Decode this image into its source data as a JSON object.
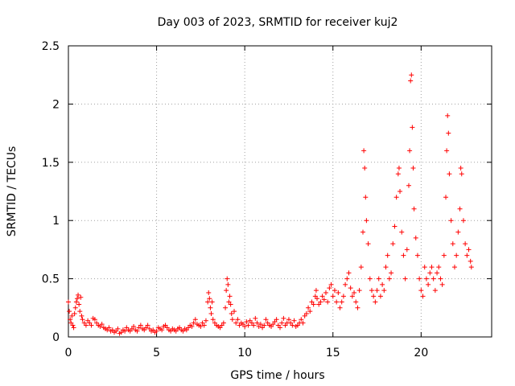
{
  "chart_data": {
    "type": "scatter",
    "title": "Day 003 of 2023, SRMTID for receiver kuj2",
    "xlabel": "GPS time / hours",
    "ylabel": "SRMTID / TECUs",
    "xlim": [
      0,
      24
    ],
    "ylim": [
      0,
      2.5
    ],
    "xticks": [
      0,
      5,
      10,
      15,
      20
    ],
    "xtick_labels": [
      "0",
      "5",
      "10",
      "15",
      "20"
    ],
    "yticks": [
      0,
      0.5,
      1,
      1.5,
      2,
      2.5
    ],
    "ytick_labels": [
      "0",
      "0.5",
      "1",
      "1.5",
      "2",
      "2.5"
    ],
    "grid": true,
    "marker": "+",
    "color": "#ff0000",
    "series": [
      {
        "name": "kuj2",
        "points": [
          [
            0.0,
            0.3
          ],
          [
            0.05,
            0.22
          ],
          [
            0.1,
            0.15
          ],
          [
            0.15,
            0.12
          ],
          [
            0.2,
            0.18
          ],
          [
            0.25,
            0.1
          ],
          [
            0.3,
            0.08
          ],
          [
            0.35,
            0.2
          ],
          [
            0.4,
            0.25
          ],
          [
            0.45,
            0.3
          ],
          [
            0.5,
            0.33
          ],
          [
            0.55,
            0.36
          ],
          [
            0.6,
            0.28
          ],
          [
            0.65,
            0.22
          ],
          [
            0.7,
            0.34
          ],
          [
            0.75,
            0.18
          ],
          [
            0.8,
            0.15
          ],
          [
            0.9,
            0.12
          ],
          [
            1.0,
            0.1
          ],
          [
            1.1,
            0.14
          ],
          [
            1.2,
            0.12
          ],
          [
            1.3,
            0.1
          ],
          [
            1.4,
            0.16
          ],
          [
            1.5,
            0.15
          ],
          [
            1.6,
            0.12
          ],
          [
            1.7,
            0.1
          ],
          [
            1.8,
            0.09
          ],
          [
            1.9,
            0.11
          ],
          [
            2.0,
            0.08
          ],
          [
            2.1,
            0.07
          ],
          [
            2.2,
            0.06
          ],
          [
            2.3,
            0.08
          ],
          [
            2.4,
            0.05
          ],
          [
            2.5,
            0.06
          ],
          [
            2.6,
            0.04
          ],
          [
            2.7,
            0.05
          ],
          [
            2.8,
            0.07
          ],
          [
            2.9,
            0.03
          ],
          [
            3.0,
            0.04
          ],
          [
            3.1,
            0.06
          ],
          [
            3.2,
            0.05
          ],
          [
            3.3,
            0.08
          ],
          [
            3.4,
            0.06
          ],
          [
            3.5,
            0.05
          ],
          [
            3.6,
            0.07
          ],
          [
            3.7,
            0.09
          ],
          [
            3.8,
            0.06
          ],
          [
            3.9,
            0.05
          ],
          [
            4.0,
            0.08
          ],
          [
            4.1,
            0.1
          ],
          [
            4.2,
            0.07
          ],
          [
            4.3,
            0.06
          ],
          [
            4.4,
            0.08
          ],
          [
            4.5,
            0.1
          ],
          [
            4.6,
            0.07
          ],
          [
            4.7,
            0.05
          ],
          [
            4.8,
            0.06
          ],
          [
            4.9,
            0.04
          ],
          [
            5.0,
            0.05
          ],
          [
            5.1,
            0.08
          ],
          [
            5.2,
            0.07
          ],
          [
            5.3,
            0.06
          ],
          [
            5.4,
            0.09
          ],
          [
            5.5,
            0.1
          ],
          [
            5.6,
            0.08
          ],
          [
            5.7,
            0.06
          ],
          [
            5.8,
            0.05
          ],
          [
            5.9,
            0.07
          ],
          [
            6.0,
            0.06
          ],
          [
            6.1,
            0.05
          ],
          [
            6.2,
            0.07
          ],
          [
            6.3,
            0.08
          ],
          [
            6.4,
            0.06
          ],
          [
            6.5,
            0.05
          ],
          [
            6.6,
            0.07
          ],
          [
            6.7,
            0.06
          ],
          [
            6.8,
            0.08
          ],
          [
            6.9,
            0.1
          ],
          [
            7.0,
            0.09
          ],
          [
            7.1,
            0.12
          ],
          [
            7.2,
            0.15
          ],
          [
            7.3,
            0.11
          ],
          [
            7.4,
            0.1
          ],
          [
            7.5,
            0.09
          ],
          [
            7.6,
            0.12
          ],
          [
            7.7,
            0.1
          ],
          [
            7.8,
            0.14
          ],
          [
            7.9,
            0.3
          ],
          [
            7.95,
            0.38
          ],
          [
            8.0,
            0.33
          ],
          [
            8.05,
            0.25
          ],
          [
            8.1,
            0.2
          ],
          [
            8.15,
            0.3
          ],
          [
            8.2,
            0.15
          ],
          [
            8.3,
            0.12
          ],
          [
            8.4,
            0.1
          ],
          [
            8.5,
            0.09
          ],
          [
            8.6,
            0.08
          ],
          [
            8.7,
            0.1
          ],
          [
            8.8,
            0.12
          ],
          [
            8.9,
            0.25
          ],
          [
            8.95,
            0.4
          ],
          [
            9.0,
            0.5
          ],
          [
            9.05,
            0.45
          ],
          [
            9.1,
            0.3
          ],
          [
            9.15,
            0.35
          ],
          [
            9.2,
            0.28
          ],
          [
            9.25,
            0.2
          ],
          [
            9.3,
            0.15
          ],
          [
            9.4,
            0.22
          ],
          [
            9.5,
            0.12
          ],
          [
            9.6,
            0.15
          ],
          [
            9.7,
            0.1
          ],
          [
            9.8,
            0.12
          ],
          [
            9.9,
            0.11
          ],
          [
            10.0,
            0.09
          ],
          [
            10.1,
            0.13
          ],
          [
            10.2,
            0.1
          ],
          [
            10.3,
            0.14
          ],
          [
            10.4,
            0.12
          ],
          [
            10.5,
            0.1
          ],
          [
            10.6,
            0.16
          ],
          [
            10.7,
            0.12
          ],
          [
            10.8,
            0.09
          ],
          [
            10.9,
            0.11
          ],
          [
            11.0,
            0.08
          ],
          [
            11.1,
            0.1
          ],
          [
            11.2,
            0.15
          ],
          [
            11.3,
            0.12
          ],
          [
            11.4,
            0.1
          ],
          [
            11.5,
            0.09
          ],
          [
            11.6,
            0.11
          ],
          [
            11.7,
            0.13
          ],
          [
            11.8,
            0.15
          ],
          [
            11.9,
            0.1
          ],
          [
            12.0,
            0.08
          ],
          [
            12.1,
            0.12
          ],
          [
            12.2,
            0.16
          ],
          [
            12.3,
            0.1
          ],
          [
            12.4,
            0.12
          ],
          [
            12.5,
            0.15
          ],
          [
            12.6,
            0.12
          ],
          [
            12.7,
            0.1
          ],
          [
            12.8,
            0.14
          ],
          [
            12.9,
            0.09
          ],
          [
            13.0,
            0.1
          ],
          [
            13.1,
            0.12
          ],
          [
            13.2,
            0.15
          ],
          [
            13.3,
            0.12
          ],
          [
            13.4,
            0.18
          ],
          [
            13.5,
            0.2
          ],
          [
            13.6,
            0.25
          ],
          [
            13.7,
            0.22
          ],
          [
            13.8,
            0.3
          ],
          [
            13.9,
            0.28
          ],
          [
            14.0,
            0.35
          ],
          [
            14.05,
            0.4
          ],
          [
            14.1,
            0.33
          ],
          [
            14.2,
            0.28
          ],
          [
            14.3,
            0.3
          ],
          [
            14.4,
            0.35
          ],
          [
            14.5,
            0.32
          ],
          [
            14.6,
            0.38
          ],
          [
            14.7,
            0.3
          ],
          [
            14.8,
            0.42
          ],
          [
            14.9,
            0.45
          ],
          [
            15.0,
            0.35
          ],
          [
            15.1,
            0.4
          ],
          [
            15.2,
            0.3
          ],
          [
            15.3,
            0.38
          ],
          [
            15.4,
            0.25
          ],
          [
            15.5,
            0.3
          ],
          [
            15.6,
            0.35
          ],
          [
            15.7,
            0.45
          ],
          [
            15.8,
            0.5
          ],
          [
            15.9,
            0.55
          ],
          [
            16.0,
            0.42
          ],
          [
            16.1,
            0.35
          ],
          [
            16.2,
            0.38
          ],
          [
            16.3,
            0.3
          ],
          [
            16.4,
            0.25
          ],
          [
            16.5,
            0.4
          ],
          [
            16.6,
            0.6
          ],
          [
            16.7,
            0.9
          ],
          [
            16.75,
            1.6
          ],
          [
            16.8,
            1.45
          ],
          [
            16.85,
            1.2
          ],
          [
            16.9,
            1.0
          ],
          [
            17.0,
            0.8
          ],
          [
            17.1,
            0.5
          ],
          [
            17.2,
            0.4
          ],
          [
            17.3,
            0.35
          ],
          [
            17.4,
            0.3
          ],
          [
            17.5,
            0.4
          ],
          [
            17.6,
            0.5
          ],
          [
            17.7,
            0.35
          ],
          [
            17.8,
            0.45
          ],
          [
            17.9,
            0.4
          ],
          [
            18.0,
            0.6
          ],
          [
            18.1,
            0.7
          ],
          [
            18.2,
            0.5
          ],
          [
            18.3,
            0.55
          ],
          [
            18.4,
            0.8
          ],
          [
            18.5,
            0.95
          ],
          [
            18.6,
            1.2
          ],
          [
            18.7,
            1.4
          ],
          [
            18.75,
            1.45
          ],
          [
            18.8,
            1.25
          ],
          [
            18.9,
            0.9
          ],
          [
            19.0,
            0.7
          ],
          [
            19.1,
            0.5
          ],
          [
            19.2,
            0.75
          ],
          [
            19.3,
            1.3
          ],
          [
            19.35,
            1.6
          ],
          [
            19.4,
            2.2
          ],
          [
            19.45,
            2.25
          ],
          [
            19.5,
            1.8
          ],
          [
            19.55,
            1.45
          ],
          [
            19.6,
            1.1
          ],
          [
            19.7,
            0.85
          ],
          [
            19.8,
            0.7
          ],
          [
            19.9,
            0.5
          ],
          [
            20.0,
            0.4
          ],
          [
            20.1,
            0.35
          ],
          [
            20.2,
            0.6
          ],
          [
            20.3,
            0.5
          ],
          [
            20.4,
            0.45
          ],
          [
            20.5,
            0.55
          ],
          [
            20.6,
            0.6
          ],
          [
            20.7,
            0.5
          ],
          [
            20.8,
            0.4
          ],
          [
            20.9,
            0.55
          ],
          [
            21.0,
            0.6
          ],
          [
            21.1,
            0.5
          ],
          [
            21.2,
            0.45
          ],
          [
            21.3,
            0.7
          ],
          [
            21.4,
            1.2
          ],
          [
            21.45,
            1.6
          ],
          [
            21.5,
            1.9
          ],
          [
            21.55,
            1.75
          ],
          [
            21.6,
            1.4
          ],
          [
            21.7,
            1.0
          ],
          [
            21.8,
            0.8
          ],
          [
            21.9,
            0.6
          ],
          [
            22.0,
            0.7
          ],
          [
            22.1,
            0.9
          ],
          [
            22.2,
            1.1
          ],
          [
            22.25,
            1.45
          ],
          [
            22.3,
            1.4
          ],
          [
            22.4,
            1.0
          ],
          [
            22.5,
            0.8
          ],
          [
            22.6,
            0.7
          ],
          [
            22.7,
            0.75
          ],
          [
            22.8,
            0.65
          ],
          [
            22.85,
            0.6
          ]
        ]
      }
    ]
  }
}
